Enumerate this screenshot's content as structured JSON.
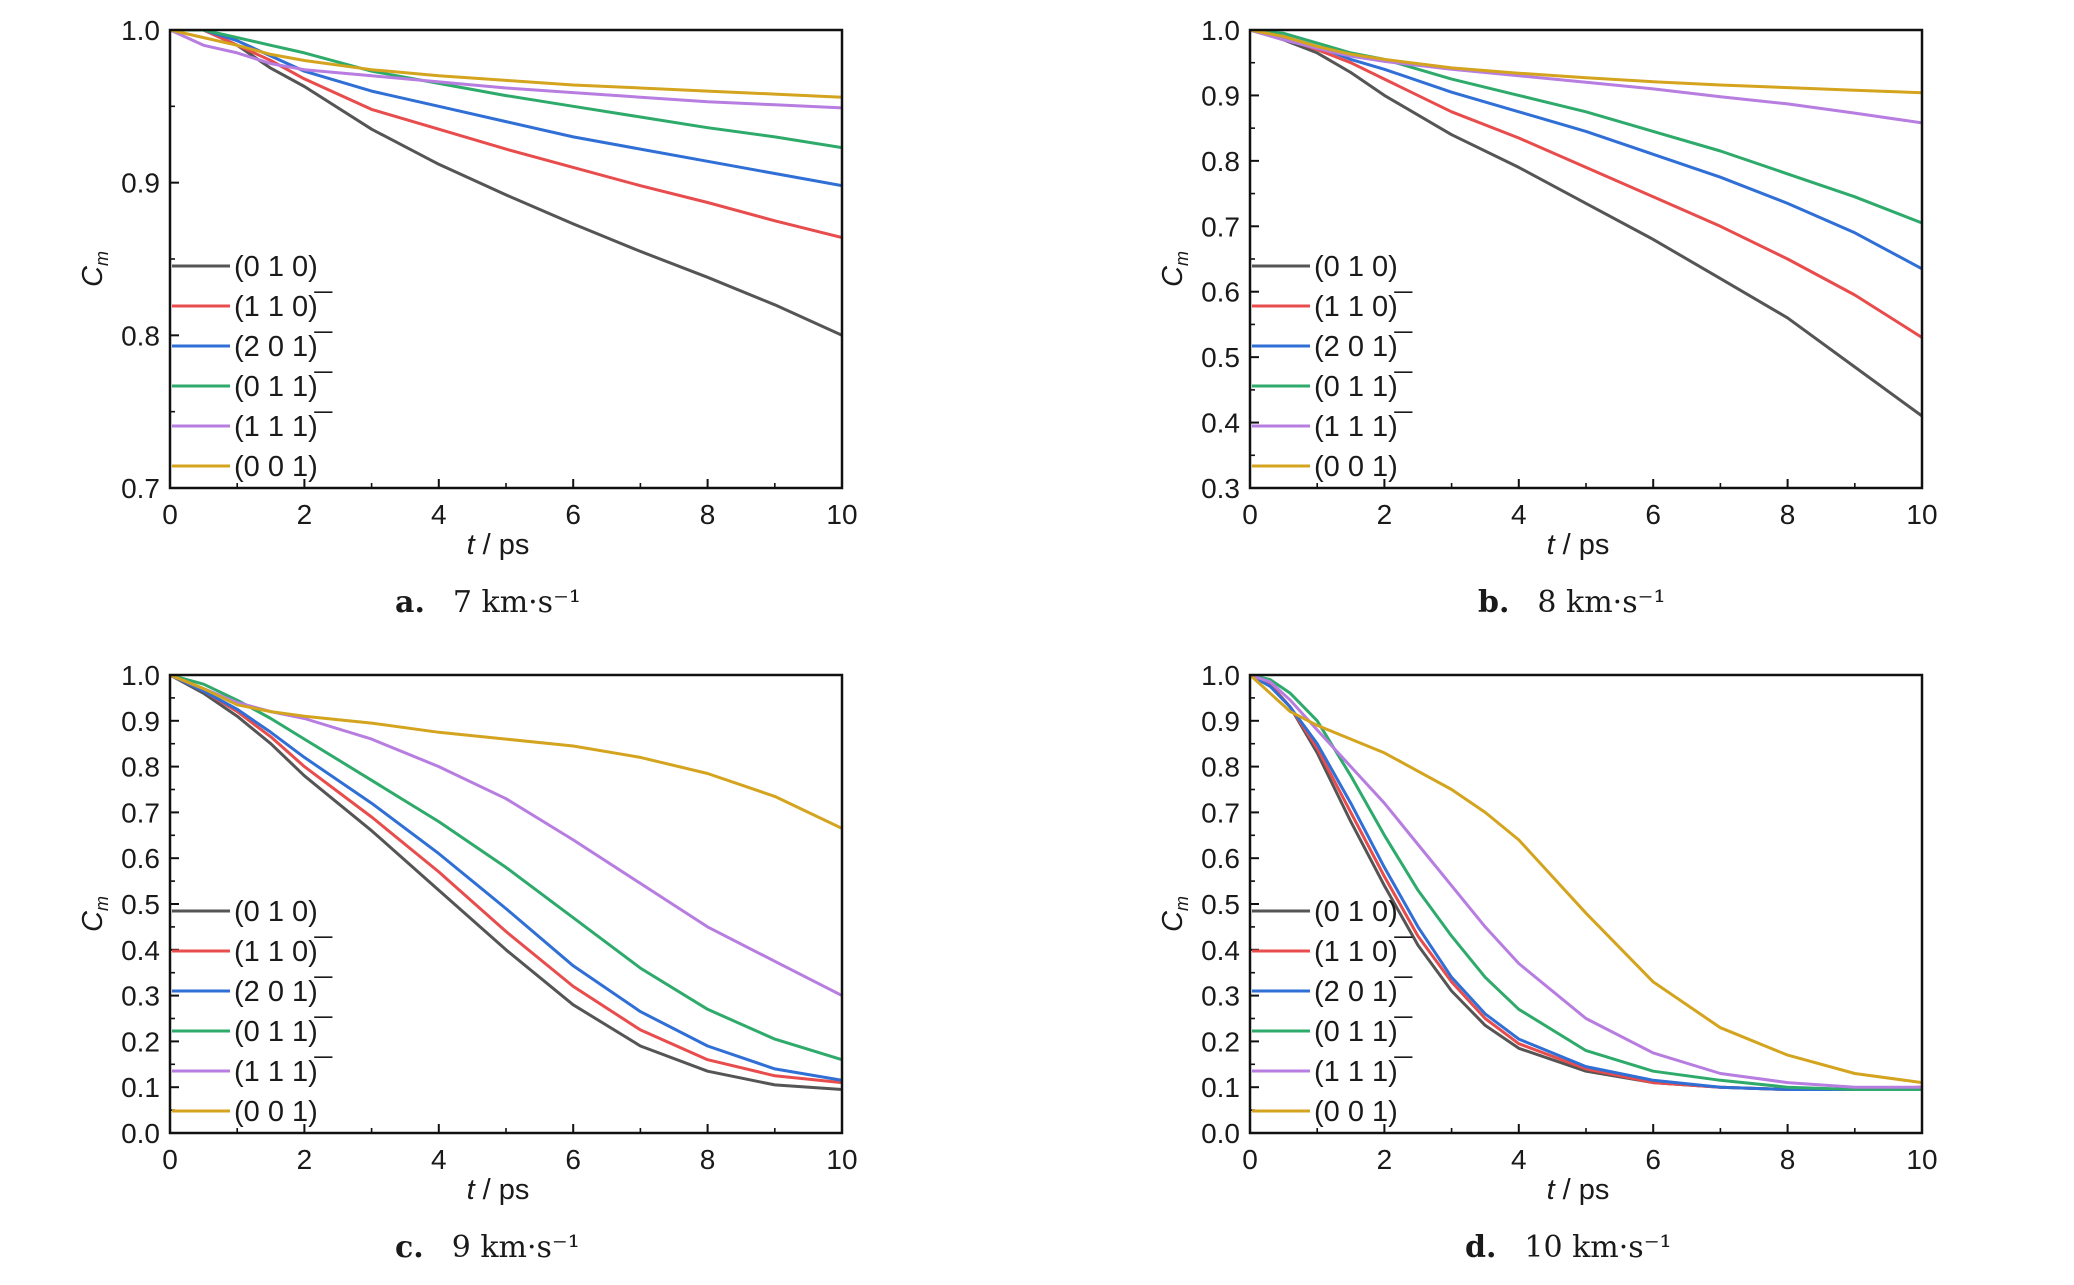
{
  "chart_data": [
    {
      "type": "line",
      "caption_letter": "a.",
      "caption_text": "7 km·s⁻¹",
      "xlabel": "t / ps",
      "ylabel": "C_m",
      "xlim": [
        0,
        10
      ],
      "ylim": [
        0.7,
        1.0
      ],
      "xticks": [
        "0",
        "2",
        "4",
        "6",
        "8",
        "10"
      ],
      "yticks": [
        "0.7",
        "0.8",
        "0.9",
        "1.0"
      ],
      "legend_position": "lower-left",
      "series": [
        {
          "name": "(0 1 0)",
          "color": "#555555",
          "x": [
            0,
            0.5,
            1,
            1.5,
            2,
            3,
            4,
            5,
            6,
            7,
            8,
            9,
            10
          ],
          "y": [
            1.0,
            1.0,
            0.99,
            0.975,
            0.963,
            0.935,
            0.912,
            0.892,
            0.873,
            0.855,
            0.838,
            0.82,
            0.8
          ]
        },
        {
          "name": "(1 1 0)",
          "color": "#e84c4c",
          "x": [
            0,
            0.5,
            1,
            1.5,
            2,
            3,
            4,
            5,
            6,
            7,
            8,
            9,
            10
          ],
          "y": [
            1.0,
            1.0,
            0.99,
            0.98,
            0.968,
            0.948,
            0.935,
            0.922,
            0.91,
            0.898,
            0.887,
            0.875,
            0.864
          ]
        },
        {
          "name": "(2 0 1)",
          "color": "#2f6fd6",
          "x": [
            0,
            0.5,
            1,
            1.5,
            2,
            3,
            4,
            5,
            6,
            7,
            8,
            9,
            10
          ],
          "y": [
            1.0,
            1.0,
            0.993,
            0.983,
            0.973,
            0.96,
            0.95,
            0.94,
            0.93,
            0.922,
            0.914,
            0.906,
            0.898
          ]
        },
        {
          "name": "(0 1 1)",
          "color": "#2eaa6b",
          "x": [
            0,
            0.5,
            1,
            1.5,
            2,
            3,
            4,
            5,
            6,
            7,
            8,
            9,
            10
          ],
          "y": [
            1.0,
            1.0,
            0.995,
            0.99,
            0.985,
            0.973,
            0.965,
            0.957,
            0.95,
            0.943,
            0.936,
            0.93,
            0.923
          ]
        },
        {
          "name": "(1 1 1)",
          "color": "#b77de0",
          "x": [
            0,
            0.5,
            1,
            1.5,
            2,
            3,
            4,
            5,
            6,
            7,
            8,
            9,
            10
          ],
          "y": [
            1.0,
            0.99,
            0.985,
            0.978,
            0.974,
            0.97,
            0.966,
            0.962,
            0.959,
            0.956,
            0.953,
            0.951,
            0.949
          ]
        },
        {
          "name": "(0 0 1)",
          "color": "#d4a41e",
          "x": [
            0,
            0.5,
            1,
            1.5,
            2,
            3,
            4,
            5,
            6,
            7,
            8,
            9,
            10
          ],
          "y": [
            1.0,
            0.995,
            0.99,
            0.984,
            0.98,
            0.974,
            0.97,
            0.967,
            0.964,
            0.962,
            0.96,
            0.958,
            0.956
          ]
        }
      ]
    },
    {
      "type": "line",
      "caption_letter": "b.",
      "caption_text": "8 km·s⁻¹",
      "xlabel": "t / ps",
      "ylabel": "C_m",
      "xlim": [
        0,
        10
      ],
      "ylim": [
        0.3,
        1.0
      ],
      "xticks": [
        "0",
        "2",
        "4",
        "6",
        "8",
        "10"
      ],
      "yticks": [
        "0.3",
        "0.4",
        "0.5",
        "0.6",
        "0.7",
        "0.8",
        "0.9",
        "1.0"
      ],
      "legend_position": "lower-left",
      "series": [
        {
          "name": "(0 1 0)",
          "color": "#555555",
          "x": [
            0,
            0.5,
            1,
            1.5,
            2,
            3,
            4,
            5,
            6,
            7,
            8,
            9,
            10
          ],
          "y": [
            1.0,
            0.985,
            0.965,
            0.935,
            0.9,
            0.84,
            0.79,
            0.735,
            0.68,
            0.62,
            0.56,
            0.485,
            0.41
          ]
        },
        {
          "name": "(1 1 0)",
          "color": "#e84c4c",
          "x": [
            0,
            0.5,
            1,
            1.5,
            2,
            3,
            4,
            5,
            6,
            7,
            8,
            9,
            10
          ],
          "y": [
            1.0,
            0.988,
            0.97,
            0.95,
            0.925,
            0.875,
            0.835,
            0.79,
            0.745,
            0.7,
            0.65,
            0.595,
            0.53
          ]
        },
        {
          "name": "(2 0 1)",
          "color": "#2f6fd6",
          "x": [
            0,
            0.5,
            1,
            1.5,
            2,
            3,
            4,
            5,
            6,
            7,
            8,
            9,
            10
          ],
          "y": [
            1.0,
            0.99,
            0.975,
            0.955,
            0.94,
            0.905,
            0.875,
            0.845,
            0.81,
            0.775,
            0.735,
            0.69,
            0.635
          ]
        },
        {
          "name": "(0 1 1)",
          "color": "#2eaa6b",
          "x": [
            0,
            0.5,
            1,
            1.5,
            2,
            3,
            4,
            5,
            6,
            7,
            8,
            9,
            10
          ],
          "y": [
            1.0,
            0.995,
            0.98,
            0.965,
            0.955,
            0.925,
            0.9,
            0.875,
            0.845,
            0.815,
            0.78,
            0.745,
            0.705
          ]
        },
        {
          "name": "(1 1 1)",
          "color": "#b77de0",
          "x": [
            0,
            0.5,
            1,
            1.5,
            2,
            3,
            4,
            5,
            6,
            7,
            8,
            9,
            10
          ],
          "y": [
            1.0,
            0.985,
            0.972,
            0.96,
            0.952,
            0.94,
            0.93,
            0.92,
            0.91,
            0.898,
            0.887,
            0.873,
            0.858
          ]
        },
        {
          "name": "(0 0 1)",
          "color": "#d4a41e",
          "x": [
            0,
            0.5,
            1,
            1.5,
            2,
            3,
            4,
            5,
            6,
            7,
            8,
            9,
            10
          ],
          "y": [
            1.0,
            0.99,
            0.975,
            0.963,
            0.955,
            0.942,
            0.934,
            0.927,
            0.921,
            0.916,
            0.912,
            0.908,
            0.904
          ]
        }
      ]
    },
    {
      "type": "line",
      "caption_letter": "c.",
      "caption_text": "9 km·s⁻¹",
      "xlabel": "t / ps",
      "ylabel": "C_m",
      "xlim": [
        0,
        10
      ],
      "ylim": [
        0.0,
        1.0
      ],
      "xticks": [
        "0",
        "2",
        "4",
        "6",
        "8",
        "10"
      ],
      "yticks": [
        "0.0",
        "0.1",
        "0.2",
        "0.3",
        "0.4",
        "0.5",
        "0.6",
        "0.7",
        "0.8",
        "0.9",
        "1.0"
      ],
      "legend_position": "lower-left",
      "series": [
        {
          "name": "(0 1 0)",
          "color": "#555555",
          "x": [
            0,
            0.5,
            1,
            1.5,
            2,
            3,
            4,
            5,
            6,
            7,
            8,
            9,
            10
          ],
          "y": [
            1.0,
            0.96,
            0.91,
            0.85,
            0.78,
            0.66,
            0.53,
            0.4,
            0.28,
            0.19,
            0.135,
            0.105,
            0.095
          ]
        },
        {
          "name": "(1 1 0)",
          "color": "#e84c4c",
          "x": [
            0,
            0.5,
            1,
            1.5,
            2,
            3,
            4,
            5,
            6,
            7,
            8,
            9,
            10
          ],
          "y": [
            1.0,
            0.965,
            0.92,
            0.865,
            0.8,
            0.69,
            0.57,
            0.44,
            0.32,
            0.225,
            0.16,
            0.125,
            0.11
          ]
        },
        {
          "name": "(2 0 1)",
          "color": "#2f6fd6",
          "x": [
            0,
            0.5,
            1,
            1.5,
            2,
            3,
            4,
            5,
            6,
            7,
            8,
            9,
            10
          ],
          "y": [
            1.0,
            0.965,
            0.925,
            0.875,
            0.82,
            0.72,
            0.61,
            0.49,
            0.365,
            0.265,
            0.19,
            0.14,
            0.115
          ]
        },
        {
          "name": "(0 1 1)",
          "color": "#2eaa6b",
          "x": [
            0,
            0.5,
            1,
            1.5,
            2,
            3,
            4,
            5,
            6,
            7,
            8,
            9,
            10
          ],
          "y": [
            1.0,
            0.98,
            0.945,
            0.905,
            0.86,
            0.77,
            0.68,
            0.58,
            0.47,
            0.36,
            0.27,
            0.205,
            0.16
          ]
        },
        {
          "name": "(1 1 1)",
          "color": "#b77de0",
          "x": [
            0,
            0.5,
            1,
            1.5,
            2,
            3,
            4,
            5,
            6,
            7,
            8,
            9,
            10
          ],
          "y": [
            1.0,
            0.97,
            0.94,
            0.92,
            0.905,
            0.86,
            0.8,
            0.73,
            0.64,
            0.545,
            0.45,
            0.375,
            0.3
          ]
        },
        {
          "name": "(0 0 1)",
          "color": "#d4a41e",
          "x": [
            0,
            0.5,
            1,
            1.5,
            2,
            3,
            4,
            5,
            6,
            7,
            8,
            9,
            10
          ],
          "y": [
            1.0,
            0.97,
            0.935,
            0.92,
            0.91,
            0.895,
            0.875,
            0.86,
            0.845,
            0.82,
            0.785,
            0.735,
            0.665
          ]
        }
      ]
    },
    {
      "type": "line",
      "caption_letter": "d.",
      "caption_text": "10 km·s⁻¹",
      "xlabel": "t / ps",
      "ylabel": "C_m",
      "xlim": [
        0,
        10
      ],
      "ylim": [
        0.0,
        1.0
      ],
      "xticks": [
        "0",
        "2",
        "4",
        "6",
        "8",
        "10"
      ],
      "yticks": [
        "0.0",
        "0.1",
        "0.2",
        "0.3",
        "0.4",
        "0.5",
        "0.6",
        "0.7",
        "0.8",
        "0.9",
        "1.0"
      ],
      "legend_position": "lower-left",
      "series": [
        {
          "name": "(0 1 0)",
          "color": "#555555",
          "x": [
            0,
            0.3,
            0.6,
            1,
            1.5,
            2,
            2.5,
            3,
            3.5,
            4,
            5,
            6,
            7,
            8,
            9,
            10
          ],
          "y": [
            1.0,
            0.98,
            0.93,
            0.83,
            0.68,
            0.54,
            0.41,
            0.31,
            0.235,
            0.185,
            0.135,
            0.11,
            0.1,
            0.095,
            0.095,
            0.1
          ]
        },
        {
          "name": "(1 1 0)",
          "color": "#e84c4c",
          "x": [
            0,
            0.3,
            0.6,
            1,
            1.5,
            2,
            2.5,
            3,
            3.5,
            4,
            5,
            6,
            7,
            8,
            9,
            10
          ],
          "y": [
            1.0,
            0.98,
            0.93,
            0.84,
            0.7,
            0.56,
            0.43,
            0.33,
            0.25,
            0.195,
            0.14,
            0.11,
            0.1,
            0.095,
            0.095,
            0.1
          ]
        },
        {
          "name": "(2 0 1)",
          "color": "#2f6fd6",
          "x": [
            0,
            0.3,
            0.6,
            1,
            1.5,
            2,
            2.5,
            3,
            3.5,
            4,
            5,
            6,
            7,
            8,
            9,
            10
          ],
          "y": [
            1.0,
            0.975,
            0.93,
            0.85,
            0.72,
            0.58,
            0.45,
            0.34,
            0.26,
            0.205,
            0.145,
            0.115,
            0.1,
            0.095,
            0.095,
            0.095
          ]
        },
        {
          "name": "(0 1 1)",
          "color": "#2eaa6b",
          "x": [
            0,
            0.3,
            0.6,
            1,
            1.5,
            2,
            2.5,
            3,
            3.5,
            4,
            5,
            6,
            7,
            8,
            9,
            10
          ],
          "y": [
            1.0,
            0.99,
            0.96,
            0.9,
            0.78,
            0.65,
            0.53,
            0.43,
            0.34,
            0.27,
            0.18,
            0.135,
            0.115,
            0.1,
            0.095,
            0.095
          ]
        },
        {
          "name": "(1 1 1)",
          "color": "#b77de0",
          "x": [
            0,
            0.3,
            0.6,
            1,
            1.5,
            2,
            2.5,
            3,
            3.5,
            4,
            5,
            6,
            7,
            8,
            9,
            10
          ],
          "y": [
            1.0,
            0.985,
            0.945,
            0.88,
            0.8,
            0.72,
            0.63,
            0.54,
            0.45,
            0.37,
            0.25,
            0.175,
            0.13,
            0.11,
            0.1,
            0.1
          ]
        },
        {
          "name": "(0 0 1)",
          "color": "#d4a41e",
          "x": [
            0,
            0.3,
            0.6,
            1,
            1.5,
            2,
            2.5,
            3,
            3.5,
            4,
            5,
            6,
            7,
            8,
            9,
            10
          ],
          "y": [
            1.0,
            0.96,
            0.92,
            0.89,
            0.86,
            0.83,
            0.79,
            0.75,
            0.7,
            0.64,
            0.48,
            0.33,
            0.23,
            0.17,
            0.13,
            0.11
          ]
        }
      ]
    }
  ]
}
